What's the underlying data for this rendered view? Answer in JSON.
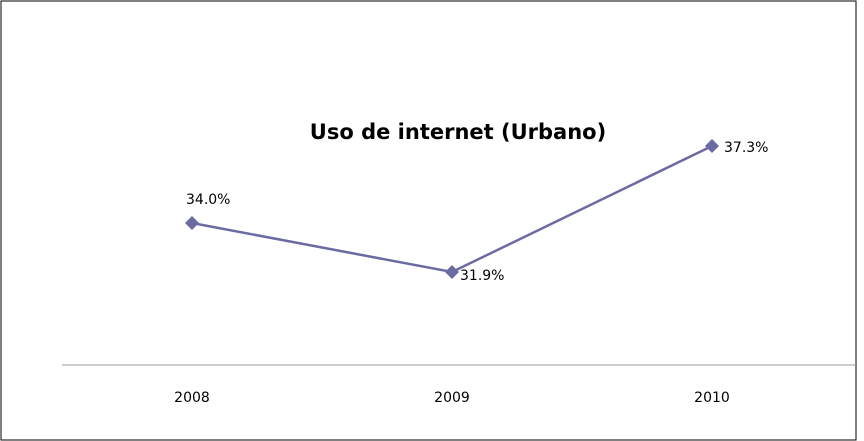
{
  "chart_data": {
    "type": "line",
    "title": "Uso de internet (Urbano)",
    "categories": [
      "2008",
      "2009",
      "2010"
    ],
    "series": [
      {
        "name": "Uso de internet (Urbano)",
        "color": "#6b6ba3",
        "values": [
          34.0,
          31.9,
          37.3
        ],
        "value_labels": [
          "34.0%",
          "31.9%",
          "37.3%"
        ]
      }
    ]
  }
}
